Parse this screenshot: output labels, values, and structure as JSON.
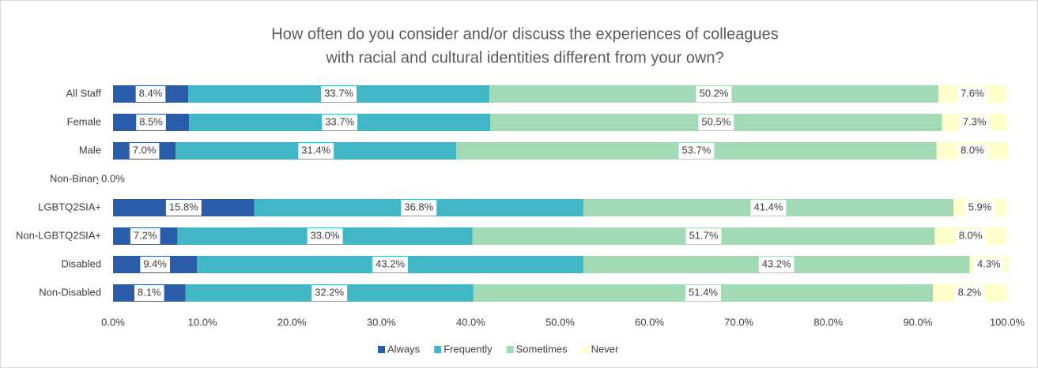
{
  "chart_data": {
    "type": "bar",
    "orientation": "horizontal",
    "stacked": true,
    "title": [
      "How often do you consider and/or discuss the experiences of colleagues",
      "with racial and cultural identities different from your own?"
    ],
    "categories": [
      "All Staff",
      "Female",
      "Male",
      "Non-Binary",
      "LGBTQ2SIA+",
      "Non-LGBTQ2SIA+",
      "Disabled",
      "Non-Disabled"
    ],
    "series": [
      {
        "name": "Always",
        "color": "#2b5ca8",
        "values": [
          8.4,
          8.5,
          7.0,
          0.0,
          15.8,
          7.2,
          9.4,
          8.1
        ],
        "value_labels": [
          "8.4%",
          "8.5%",
          "7.0%",
          "0.0%",
          "15.8%",
          "7.2%",
          "9.4%",
          "8.1%"
        ]
      },
      {
        "name": "Frequently",
        "color": "#41b6c4",
        "values": [
          33.7,
          33.7,
          31.4,
          null,
          36.8,
          33.0,
          43.2,
          32.2
        ],
        "value_labels": [
          "33.7%",
          "33.7%",
          "31.4%",
          null,
          "36.8%",
          "33.0%",
          "43.2%",
          "32.2%"
        ]
      },
      {
        "name": "Sometimes",
        "color": "#a1dab4",
        "values": [
          50.2,
          50.5,
          53.7,
          null,
          41.4,
          51.7,
          43.2,
          51.4
        ],
        "value_labels": [
          "50.2%",
          "50.5%",
          "53.7%",
          null,
          "41.4%",
          "51.7%",
          "43.2%",
          "51.4%"
        ]
      },
      {
        "name": "Never",
        "color": "#ffffcc",
        "values": [
          7.6,
          7.3,
          8.0,
          null,
          5.9,
          8.0,
          4.3,
          8.2
        ],
        "value_labels": [
          "7.6%",
          "7.3%",
          "8.0%",
          null,
          "5.9%",
          "8.0%",
          "4.3%",
          "8.2%"
        ]
      }
    ],
    "xlim": [
      0,
      100
    ],
    "xticks": [
      {
        "value": 0,
        "label": "0.0%"
      },
      {
        "value": 10,
        "label": "10.0%"
      },
      {
        "value": 20,
        "label": "20.0%"
      },
      {
        "value": 30,
        "label": "30.0%"
      },
      {
        "value": 40,
        "label": "40.0%"
      },
      {
        "value": 50,
        "label": "50.0%"
      },
      {
        "value": 60,
        "label": "60.0%"
      },
      {
        "value": 70,
        "label": "70.0%"
      },
      {
        "value": 80,
        "label": "80.0%"
      },
      {
        "value": 90,
        "label": "90.0%"
      },
      {
        "value": 100,
        "label": "100.0%"
      }
    ],
    "legend": "bottom"
  }
}
